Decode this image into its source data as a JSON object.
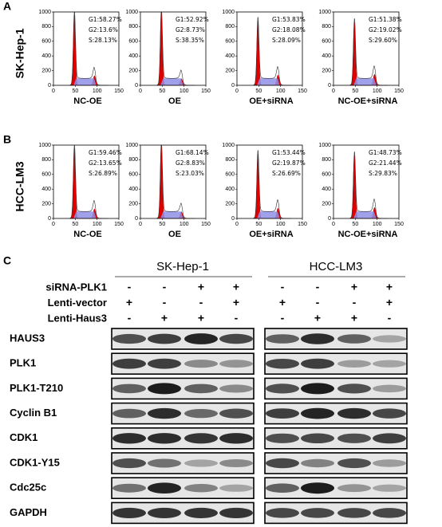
{
  "axis": {
    "xticks": [
      0,
      50,
      100,
      150
    ],
    "yticks": [
      0,
      200,
      400,
      600,
      800,
      1000
    ]
  },
  "panels": [
    {
      "label": "A",
      "cell_line": "SK-Hep-1",
      "plots": [
        {
          "name": "NC-OE",
          "g1": "G1:58.27%",
          "g2": "G2:13.6%",
          "s": "S:28.13%"
        },
        {
          "name": "OE",
          "g1": "G1:52.92%",
          "g2": "G2:8.73%",
          "s": "S:38.35%"
        },
        {
          "name": "OE+siRNA",
          "g1": "G1:53.83%",
          "g2": "G2:18.08%",
          "s": "S:28.09%"
        },
        {
          "name": "NC-OE+siRNA",
          "g1": "G1:51.38%",
          "g2": "G2:19.02%",
          "s": "S:29.60%"
        }
      ]
    },
    {
      "label": "B",
      "cell_line": "HCC-LM3",
      "plots": [
        {
          "name": "NC-OE",
          "g1": "G1:59.46%",
          "g2": "G2:13.65%",
          "s": "S:26.89%"
        },
        {
          "name": "OE",
          "g1": "G1:68.14%",
          "g2": "G2:8.83%",
          "s": "S:23.03%"
        },
        {
          "name": "OE+siRNA",
          "g1": "G1:53.44%",
          "g2": "G2:19.87%",
          "s": "S:26.69%"
        },
        {
          "name": "NC-OE+siRNA",
          "g1": "G1:48.73%",
          "g2": "G2:21.44%",
          "s": "S:29.83%"
        }
      ]
    }
  ],
  "blot": {
    "label": "C",
    "conditions": [
      "siRNA-PLK1",
      "Lenti-vector",
      "Lenti-Haus3"
    ],
    "groups": [
      {
        "name": "SK-Hep-1",
        "signs": [
          [
            "-",
            "-",
            "+",
            "+"
          ],
          [
            "+",
            "-",
            "-",
            "+"
          ],
          [
            "-",
            "+",
            "+",
            "-"
          ]
        ]
      },
      {
        "name": "HCC-LM3",
        "signs": [
          [
            "-",
            "-",
            "+",
            "+"
          ],
          [
            "+",
            "-",
            "-",
            "+"
          ],
          [
            "-",
            "+",
            "+",
            "-"
          ]
        ]
      }
    ],
    "proteins": [
      "HAUS3",
      "PLK1",
      "PLK1-T210",
      "Cyclin B1",
      "CDK1",
      "CDK1-Y15",
      "Cdc25c",
      "GAPDH"
    ]
  }
}
